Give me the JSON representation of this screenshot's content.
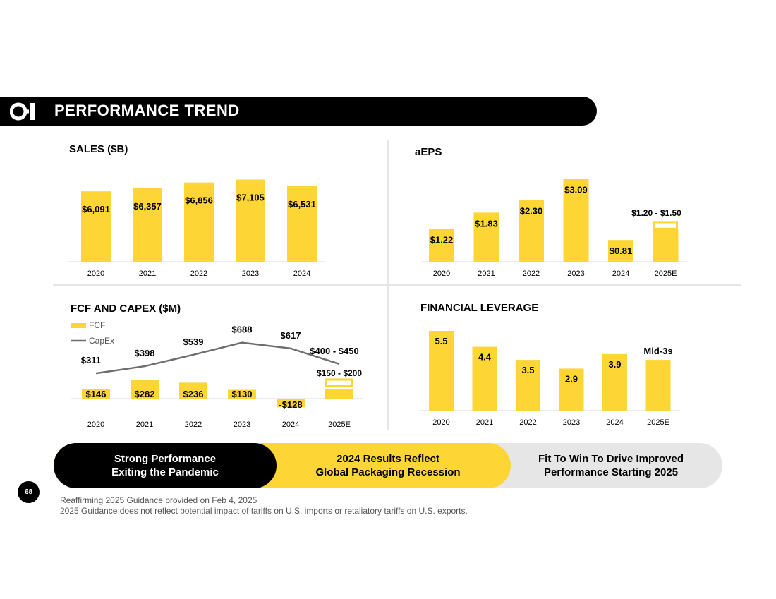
{
  "page": {
    "number": "68",
    "title": "PERFORMANCE TREND",
    "logo": "O-I"
  },
  "colors": {
    "accent": "#fdd535",
    "dark": "#000000",
    "line": "#6e6e6e",
    "grey": "#e6e6e6"
  },
  "chart_data": [
    {
      "id": "sales",
      "type": "bar",
      "title": "SALES ($B)",
      "categories": [
        "2020",
        "2021",
        "2022",
        "2023",
        "2024"
      ],
      "values": [
        6091,
        6357,
        6856,
        7105,
        6531
      ],
      "labels": [
        "$6,091",
        "$6,357",
        "$6,856",
        "$7,105",
        "$6,531"
      ],
      "ylim": [
        0,
        7200
      ]
    },
    {
      "id": "aeps",
      "type": "bar",
      "title": "aEPS",
      "categories": [
        "2020",
        "2021",
        "2022",
        "2023",
        "2024",
        "2025E"
      ],
      "values": [
        1.22,
        1.83,
        2.3,
        3.09,
        0.81,
        null
      ],
      "labels": [
        "$1.22",
        "$1.83",
        "$2.30",
        "$3.09",
        "$0.81",
        "$1.20 - $1.50"
      ],
      "range": {
        "category": "2025E",
        "low": 1.2,
        "high": 1.5
      },
      "ylim": [
        0,
        3.1
      ]
    },
    {
      "id": "fcf",
      "type": "bar",
      "title": "FCF AND CAPEX ($M)",
      "legend": [
        "FCF",
        "CapEx"
      ],
      "categories": [
        "2020",
        "2021",
        "2022",
        "2023",
        "2024",
        "2025E"
      ],
      "series": [
        {
          "name": "FCF",
          "type": "bar",
          "values": [
            146,
            282,
            236,
            130,
            -128,
            null
          ],
          "labels": [
            "$146",
            "$282",
            "$236",
            "$130",
            "-$128",
            "$150 - $200"
          ],
          "range": {
            "category": "2025E",
            "low": 150,
            "high": 200
          }
        },
        {
          "name": "CapEx",
          "type": "line",
          "values": [
            311,
            398,
            539,
            688,
            617,
            425
          ],
          "labels": [
            "$311",
            "$398",
            "$539",
            "$688",
            "$617",
            "$400 - $450"
          ]
        }
      ],
      "ylim": [
        -130,
        700
      ]
    },
    {
      "id": "leverage",
      "type": "bar",
      "title": "FINANCIAL LEVERAGE",
      "categories": [
        "2020",
        "2021",
        "2022",
        "2023",
        "2024",
        "2025E"
      ],
      "values": [
        5.5,
        4.4,
        3.5,
        2.9,
        3.9,
        3.5
      ],
      "labels": [
        "5.5",
        "4.4",
        "3.5",
        "2.9",
        "3.9",
        "Mid-3s"
      ],
      "ylim": [
        0,
        5.5
      ]
    }
  ],
  "pills": [
    {
      "text": "Strong Performance\nExiting the Pandemic"
    },
    {
      "text": "2024 Results Reflect\nGlobal Packaging Recession"
    },
    {
      "text": "Fit To Win To Drive Improved\nPerformance Starting 2025"
    }
  ],
  "footnotes": [
    "Reaffirming 2025 Guidance provided on Feb 4, 2025",
    "2025 Guidance does not reflect potential impact of tariffs on U.S. imports or retaliatory tariffs on U.S. exports."
  ]
}
